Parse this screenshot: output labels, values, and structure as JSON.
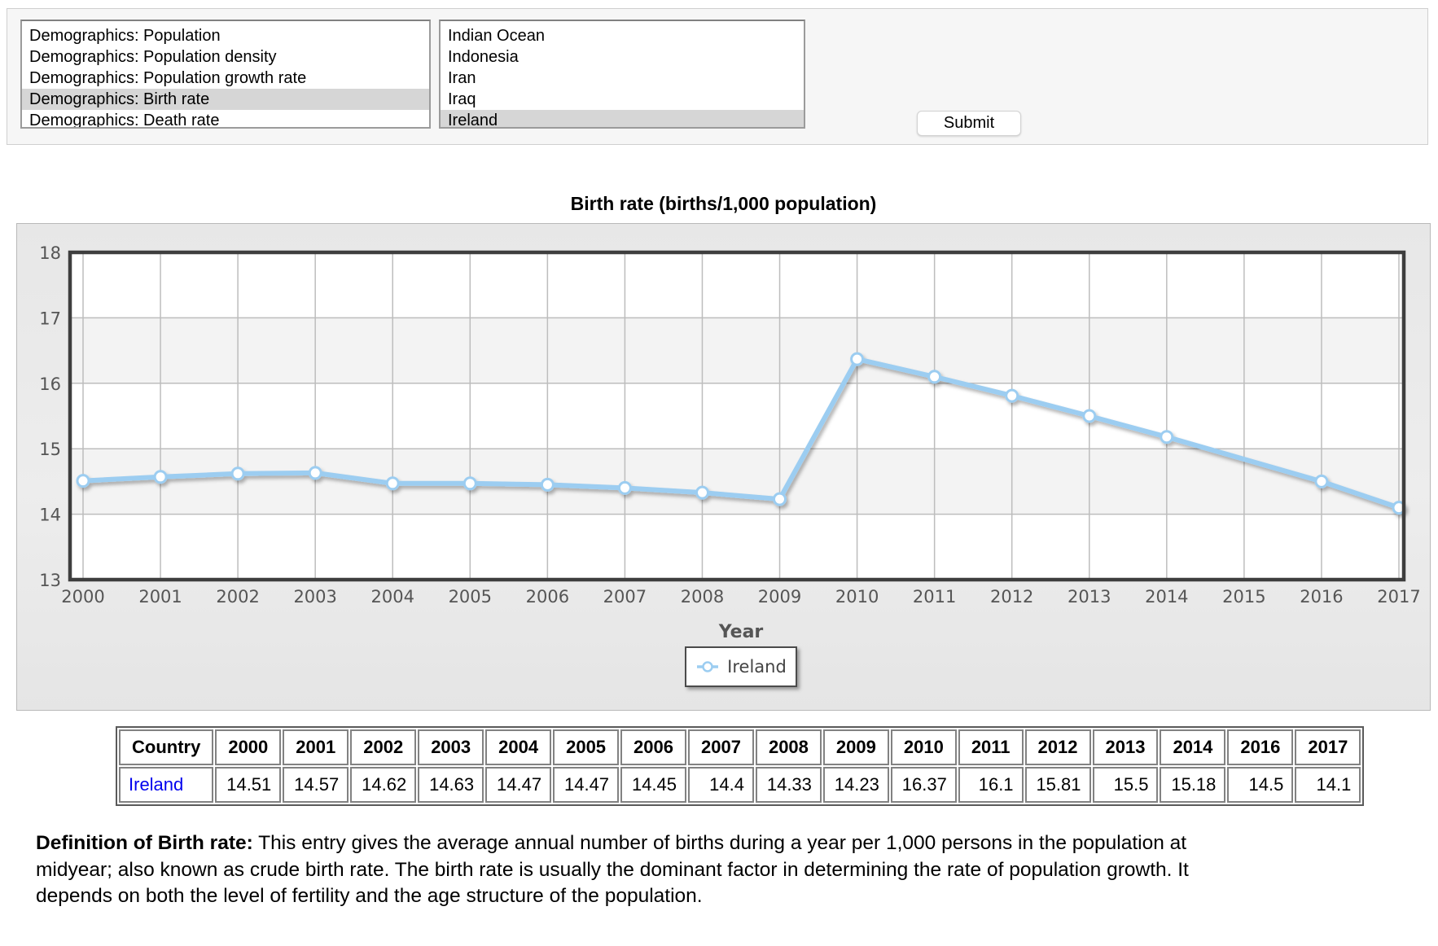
{
  "form": {
    "metric_listbox": {
      "options": [
        "Demographics: Population",
        "Demographics: Population density",
        "Demographics: Population growth rate",
        "Demographics: Birth rate",
        "Demographics: Death rate"
      ],
      "selected": "Demographics: Birth rate",
      "selected_index": 3
    },
    "country_listbox": {
      "options": [
        "Indian Ocean",
        "Indonesia",
        "Iran",
        "Iraq",
        "Ireland"
      ],
      "selected": "Ireland",
      "selected_index": 4
    },
    "submit_button": "Submit"
  },
  "chart_data": {
    "type": "line",
    "title": "Birth rate (births/1,000 population)",
    "xlabel": "Year",
    "ylabel": "",
    "ylim": [
      13,
      18
    ],
    "y_ticks": [
      13,
      14,
      15,
      16,
      17,
      18
    ],
    "x_ticks": [
      "2000",
      "2001",
      "2002",
      "2003",
      "2004",
      "2005",
      "2006",
      "2007",
      "2008",
      "2009",
      "2010",
      "2011",
      "2012",
      "2013",
      "2014",
      "2015",
      "2016",
      "2017"
    ],
    "grid": true,
    "legend": {
      "position": "bottom",
      "entries": [
        "Ireland"
      ]
    },
    "series": [
      {
        "name": "Ireland",
        "x": [
          2000,
          2001,
          2002,
          2003,
          2004,
          2005,
          2006,
          2007,
          2008,
          2009,
          2010,
          2011,
          2012,
          2013,
          2014,
          2016,
          2017
        ],
        "y": [
          14.51,
          14.57,
          14.62,
          14.63,
          14.47,
          14.47,
          14.45,
          14.4,
          14.33,
          14.23,
          16.37,
          16.1,
          15.81,
          15.5,
          15.18,
          14.5,
          14.1
        ]
      }
    ],
    "colors": {
      "line": "#9CCDF1",
      "marker_fill": "#ffffff",
      "band": "#f3f3f3",
      "band_alt": "#ffffff",
      "gridline": "#bdbdbd",
      "plot_border": "#3e3e3e",
      "axis_text": "#555555"
    }
  },
  "table": {
    "headers": [
      "Country",
      "2000",
      "2001",
      "2002",
      "2003",
      "2004",
      "2005",
      "2006",
      "2007",
      "2008",
      "2009",
      "2010",
      "2011",
      "2012",
      "2013",
      "2014",
      "2016",
      "2017"
    ],
    "rows": [
      {
        "country": "Ireland",
        "values": [
          "14.51",
          "14.57",
          "14.62",
          "14.63",
          "14.47",
          "14.47",
          "14.45",
          "14.4",
          "14.33",
          "14.23",
          "16.37",
          "16.1",
          "15.81",
          "15.5",
          "15.18",
          "14.5",
          "14.1"
        ]
      }
    ]
  },
  "definition": {
    "label": "Definition of Birth rate:",
    "text": "This entry gives the average annual number of births during a year per 1,000 persons in the population at midyear; also known as crude birth rate. The birth rate is usually the dominant factor in determining the rate of population growth. It depends on both the level of fertility and the age structure of the population."
  }
}
